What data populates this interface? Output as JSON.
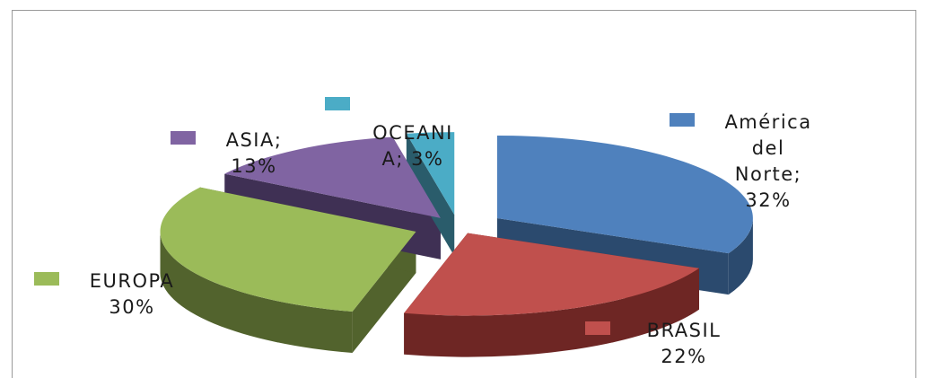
{
  "chart_data": {
    "type": "pie",
    "title": "",
    "slices": [
      {
        "key": "america",
        "lines": [
          "América",
          "del",
          "Norte;",
          "32%"
        ],
        "value": 32,
        "color": "#4f81bd",
        "side": "#2b4a6e"
      },
      {
        "key": "brasil",
        "lines": [
          "BRASIL",
          "22%"
        ],
        "value": 22,
        "color": "#c0504d",
        "side": "#6e2624"
      },
      {
        "key": "europa",
        "lines": [
          "EUROPA",
          "30%"
        ],
        "value": 30,
        "color": "#9bbb59",
        "side": "#52632d"
      },
      {
        "key": "asia",
        "lines": [
          "ASIA;",
          "13%"
        ],
        "value": 13,
        "color": "#8064a2",
        "side": "#3f3054"
      },
      {
        "key": "oceania",
        "lines": [
          "OCEANI",
          "A;  3%"
        ],
        "value": 3,
        "color": "#4bacc6",
        "side": "#2a5c6b"
      }
    ]
  }
}
